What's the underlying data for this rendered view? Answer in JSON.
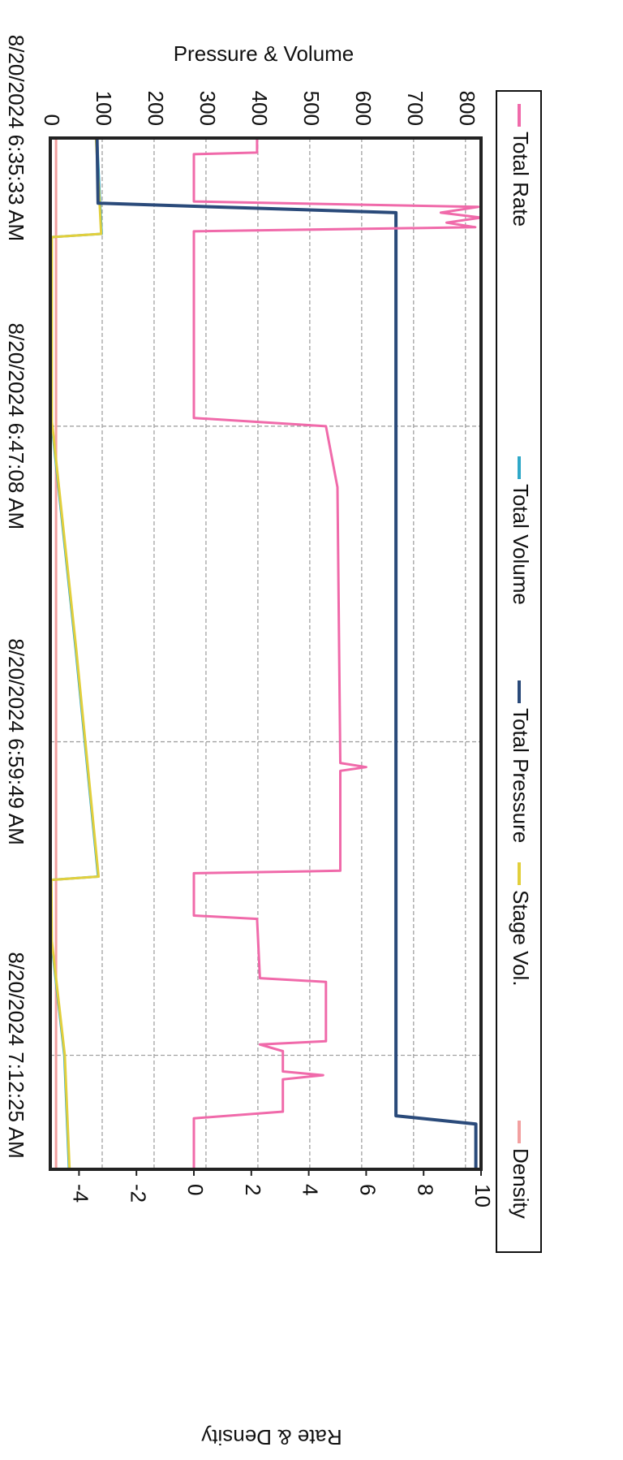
{
  "chart_data": {
    "type": "line",
    "y_label": "Pressure & Volume",
    "y2_label": "Rate & Density",
    "xlim": [
      "8/20/2024 6:35:33 AM",
      "8/20/2024 7:17:00 AM"
    ],
    "xticks": [
      "8/20/2024 6:35:33 AM",
      "8/20/2024 6:47:08 AM",
      "8/20/2024 6:59:49 AM",
      "8/20/2024 7:12:25 AM"
    ],
    "ylim": [
      0,
      830
    ],
    "yticks": [
      0,
      100,
      200,
      300,
      400,
      500,
      600,
      700,
      800
    ],
    "y2lim": [
      -5,
      10
    ],
    "y2ticks": [
      -4,
      -2,
      0,
      2,
      4,
      6,
      8,
      10
    ],
    "grid": true,
    "legend": "top",
    "series": [
      {
        "name": "Total Rate",
        "color": "#f06aaa",
        "axis": "y2",
        "x": [
          "8/20/2024 6:35:33 AM",
          "8/20/2024 6:36:08 AM",
          "8/20/2024 6:36:12 AM",
          "8/20/2024 6:38:06 AM",
          "8/20/2024 6:38:19 AM",
          "8/20/2024 6:38:33 AM",
          "8/20/2024 6:38:45 AM",
          "8/20/2024 6:38:57 AM",
          "8/20/2024 6:39:08 AM",
          "8/20/2024 6:39:18 AM",
          "8/20/2024 6:46:48 AM",
          "8/20/2024 6:47:08 AM",
          "8/20/2024 6:49:35 AM",
          "8/20/2024 7:00:40 AM",
          "8/20/2024 7:00:50 AM",
          "8/20/2024 7:00:59 AM",
          "8/20/2024 7:05:00 AM",
          "8/20/2024 7:05:06 AM",
          "8/20/2024 7:06:48 AM",
          "8/20/2024 7:06:56 AM",
          "8/20/2024 7:09:19 AM",
          "8/20/2024 7:09:28 AM",
          "8/20/2024 7:11:51 AM",
          "8/20/2024 7:11:59 AM",
          "8/20/2024 7:12:15 AM",
          "8/20/2024 7:13:04 AM",
          "8/20/2024 7:13:13 AM",
          "8/20/2024 7:13:23 AM",
          "8/20/2024 7:14:41 AM",
          "8/20/2024 7:14:57 AM",
          "8/20/2024 7:16:58 AM"
        ],
        "values": [
          2.2,
          2.2,
          0,
          0,
          9.9,
          8.6,
          10,
          8.8,
          9.8,
          0,
          0,
          4.6,
          5.0,
          5.1,
          6.0,
          5.1,
          5.1,
          0,
          0,
          2.2,
          2.3,
          4.6,
          4.6,
          2.3,
          3.1,
          3.1,
          4.5,
          3.1,
          3.1,
          0,
          0
        ]
      },
      {
        "name": "Total Volume",
        "color": "#2fa8c8",
        "x": [
          "8/20/2024 6:35:33 AM",
          "8/20/2024 6:38:10 AM",
          "8/20/2024 6:39:24 AM",
          "8/20/2024 6:39:32 AM",
          "8/20/2024 6:46:58 AM",
          "8/20/2024 6:47:18 AM",
          "8/20/2024 6:56:06 AM",
          "8/20/2024 7:05:14 AM",
          "8/20/2024 7:05:22 AM",
          "8/20/2024 7:07:50 AM",
          "8/20/2024 7:12:25 AM",
          "8/20/2024 7:16:58 AM"
        ],
        "values": [
          90,
          96,
          99,
          2,
          2,
          4,
          49,
          92,
          1,
          2,
          27,
          36
        ]
      },
      {
        "name": "Total Pressure",
        "color": "#2a4a7a",
        "x": [
          "8/20/2024 6:35:33 AM",
          "8/20/2024 6:38:10 AM",
          "8/20/2024 6:38:33 AM",
          "8/20/2024 7:14:51 AM",
          "8/20/2024 7:15:11 AM",
          "8/20/2024 7:16:58 AM"
        ],
        "values": [
          90,
          92,
          666,
          666,
          820,
          820
        ]
      },
      {
        "name": "Stage Vol.",
        "color": "#e2cf3c",
        "x": [
          "8/20/2024 6:35:33 AM",
          "8/20/2024 6:38:10 AM",
          "8/20/2024 6:39:24 AM",
          "8/20/2024 6:39:32 AM",
          "8/20/2024 6:46:58 AM",
          "8/20/2024 6:47:18 AM",
          "8/20/2024 6:56:06 AM",
          "8/20/2024 7:05:14 AM",
          "8/20/2024 7:05:22 AM",
          "8/20/2024 7:07:50 AM",
          "8/20/2024 7:12:25 AM",
          "8/20/2024 7:16:58 AM"
        ],
        "values": [
          88,
          95,
          98,
          3,
          3,
          5,
          50,
          93,
          2,
          3,
          28,
          37
        ]
      },
      {
        "name": "Density",
        "color": "#f2a0a0",
        "axis": "y2",
        "x": [
          "8/20/2024 6:35:33 AM",
          "8/20/2024 7:16:58 AM"
        ],
        "values": [
          -4.8,
          -4.8
        ]
      }
    ]
  }
}
